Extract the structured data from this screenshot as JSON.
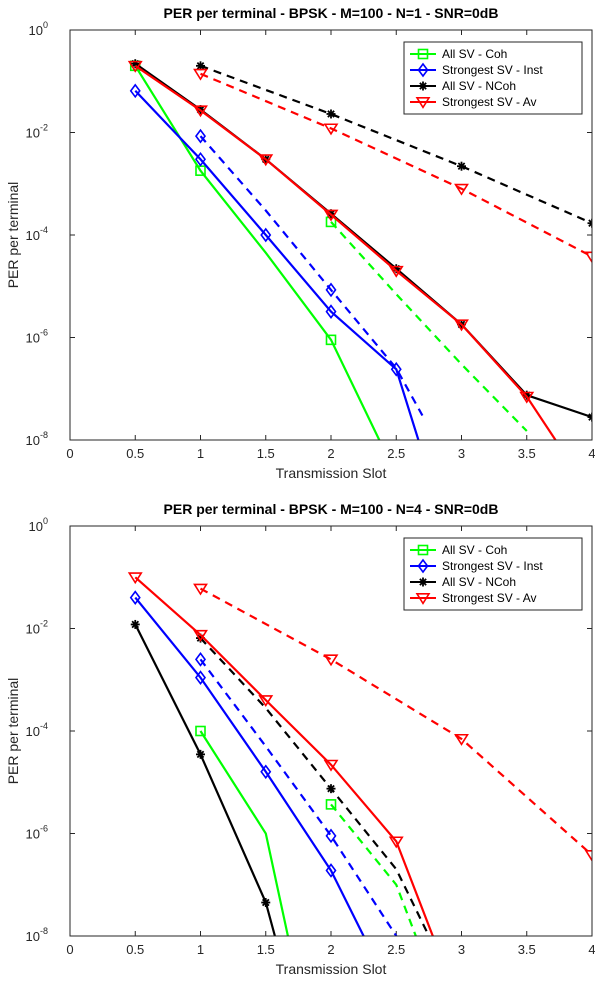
{
  "chart_data": [
    {
      "type": "line",
      "title": "PER per terminal - BPSK - M=100 -  N=1 - SNR=0dB",
      "xlabel": "Transmission Slot",
      "ylabel": "PER per terminal",
      "xlim": [
        0,
        4
      ],
      "ylim": [
        1e-08,
        1
      ],
      "yscale": "log",
      "xticks": [
        "0",
        "0.5",
        "1",
        "1.5",
        "2",
        "2.5",
        "3",
        "3.5",
        "4"
      ],
      "yticks": [
        {
          "base": "10",
          "exp": "-8"
        },
        {
          "base": "10",
          "exp": "-6"
        },
        {
          "base": "10",
          "exp": "-4"
        },
        {
          "base": "10",
          "exp": "-2"
        },
        {
          "base": "10",
          "exp": "0"
        }
      ],
      "legend_position": "top-right",
      "series": [
        {
          "name": "All SV - Coh",
          "color": "#00ff00",
          "marker": "square",
          "style": "solid",
          "x": [
            0.5,
            1,
            1.5,
            2,
            2.37
          ],
          "y": [
            0.2,
            0.0018,
            4.5e-05,
            9e-07,
            1e-08
          ],
          "marked": [
            true,
            true,
            false,
            true,
            false
          ]
        },
        {
          "name": "",
          "color": "#00ff00",
          "marker": "square",
          "style": "dashed",
          "x": [
            2,
            2.5,
            3,
            3.5
          ],
          "y": [
            0.00018,
            7e-06,
            3e-07,
            1.5e-08
          ],
          "marked": [
            true,
            false,
            false,
            false
          ]
        },
        {
          "name": "Strongest SV - Inst",
          "color": "#0000ff",
          "marker": "diamond",
          "style": "solid",
          "x": [
            0.5,
            1,
            1.5,
            2,
            2.5,
            2.67
          ],
          "y": [
            0.065,
            0.003,
            0.0001,
            3.2e-06,
            2.4e-07,
            1e-08
          ],
          "marked": [
            true,
            true,
            true,
            true,
            true,
            false
          ]
        },
        {
          "name": "",
          "color": "#0000ff",
          "marker": "diamond",
          "style": "dashed",
          "x": [
            1,
            1.5,
            2,
            2.5,
            2.7
          ],
          "y": [
            0.0085,
            0.0003,
            8.5e-06,
            2.5e-07,
            3e-08
          ],
          "marked": [
            true,
            false,
            true,
            false,
            false
          ]
        },
        {
          "name": "All SV - NCoh",
          "color": "#000000",
          "marker": "asterisk",
          "style": "solid",
          "x": [
            0.5,
            1,
            1.5,
            2,
            2.5,
            3,
            3.5,
            4
          ],
          "y": [
            0.22,
            0.028,
            0.003,
            0.00026,
            2.2e-05,
            1.8e-06,
            7.5e-08,
            2.8e-08
          ],
          "marked": [
            true,
            true,
            true,
            true,
            true,
            true,
            true,
            true
          ]
        },
        {
          "name": "",
          "color": "#000000",
          "marker": "asterisk",
          "style": "dashed",
          "x": [
            1,
            2,
            3,
            4
          ],
          "y": [
            0.2,
            0.023,
            0.0022,
            0.00017
          ],
          "marked": [
            true,
            true,
            true,
            true
          ]
        },
        {
          "name": "Strongest SV - Av",
          "color": "#ff0000",
          "marker": "triangle-down",
          "style": "solid",
          "x": [
            0.5,
            1,
            1.5,
            2,
            2.5,
            3,
            3.5,
            3.72
          ],
          "y": [
            0.2,
            0.027,
            0.003,
            0.00025,
            2e-05,
            1.8e-06,
            7e-08,
            1e-08
          ],
          "marked": [
            true,
            true,
            true,
            true,
            true,
            true,
            true,
            false
          ]
        },
        {
          "name": "",
          "color": "#ff0000",
          "marker": "triangle-down",
          "style": "dashed",
          "x": [
            1,
            2,
            3,
            4
          ],
          "y": [
            0.14,
            0.012,
            0.0008,
            3.8e-05
          ],
          "marked": [
            true,
            true,
            true,
            true
          ]
        }
      ]
    },
    {
      "type": "line",
      "title": "PER per terminal - BPSK - M=100 -  N=4 - SNR=0dB",
      "xlabel": "Transmission Slot",
      "ylabel": "PER per terminal",
      "xlim": [
        0,
        4
      ],
      "ylim": [
        1e-08,
        1
      ],
      "yscale": "log",
      "xticks": [
        "0",
        "0.5",
        "1",
        "1.5",
        "2",
        "2.5",
        "3",
        "3.5",
        "4"
      ],
      "yticks": [
        {
          "base": "10",
          "exp": "-8"
        },
        {
          "base": "10",
          "exp": "-6"
        },
        {
          "base": "10",
          "exp": "-4"
        },
        {
          "base": "10",
          "exp": "-2"
        },
        {
          "base": "10",
          "exp": "0"
        }
      ],
      "legend_position": "top-right",
      "series": [
        {
          "name": "All SV - Coh",
          "color": "#00ff00",
          "marker": "square",
          "style": "solid",
          "x": [
            1,
            1.5,
            1.67
          ],
          "y": [
            0.0001,
            1e-06,
            1e-08
          ],
          "marked": [
            true,
            false,
            false
          ]
        },
        {
          "name": "",
          "color": "#00ff00",
          "marker": "square",
          "style": "dashed",
          "x": [
            2,
            2.5,
            2.65
          ],
          "y": [
            3.7e-06,
            1e-07,
            1e-08
          ],
          "marked": [
            true,
            false,
            false
          ]
        },
        {
          "name": "Strongest SV - Inst",
          "color": "#0000ff",
          "marker": "diamond",
          "style": "solid",
          "x": [
            0.5,
            1,
            1.5,
            2,
            2.25
          ],
          "y": [
            0.04,
            0.0011,
            1.6e-05,
            1.9e-07,
            1e-08
          ],
          "marked": [
            true,
            true,
            true,
            true,
            false
          ]
        },
        {
          "name": "",
          "color": "#0000ff",
          "marker": "diamond",
          "style": "dashed",
          "x": [
            1,
            1.5,
            2,
            2.5
          ],
          "y": [
            0.0025,
            5e-05,
            9e-07,
            1e-08
          ],
          "marked": [
            true,
            false,
            true,
            false
          ]
        },
        {
          "name": "All SV - NCoh",
          "color": "#000000",
          "marker": "asterisk",
          "style": "solid",
          "x": [
            0.5,
            1,
            1.5,
            1.57
          ],
          "y": [
            0.012,
            3.5e-05,
            4.5e-08,
            1e-08
          ],
          "marked": [
            true,
            true,
            true,
            false
          ]
        },
        {
          "name": "",
          "color": "#000000",
          "marker": "asterisk",
          "style": "dashed",
          "x": [
            1,
            1.5,
            2,
            2.5,
            2.75
          ],
          "y": [
            0.0065,
            0.00028,
            7.5e-06,
            2e-07,
            1e-08
          ],
          "marked": [
            true,
            false,
            true,
            false,
            false
          ]
        },
        {
          "name": "Strongest SV - Av",
          "color": "#ff0000",
          "marker": "triangle-down",
          "style": "solid",
          "x": [
            0.5,
            1,
            1.5,
            2,
            2.5,
            2.78
          ],
          "y": [
            0.1,
            0.0075,
            0.0004,
            2.2e-05,
            7e-07,
            1e-08
          ],
          "marked": [
            true,
            true,
            true,
            true,
            true,
            false
          ]
        },
        {
          "name": "",
          "color": "#ff0000",
          "marker": "triangle-down",
          "style": "dashed",
          "x": [
            1,
            2,
            3,
            4
          ],
          "y": [
            0.06,
            0.0025,
            7e-05,
            3.8e-07
          ],
          "marked": [
            true,
            true,
            true,
            true
          ]
        }
      ]
    }
  ]
}
